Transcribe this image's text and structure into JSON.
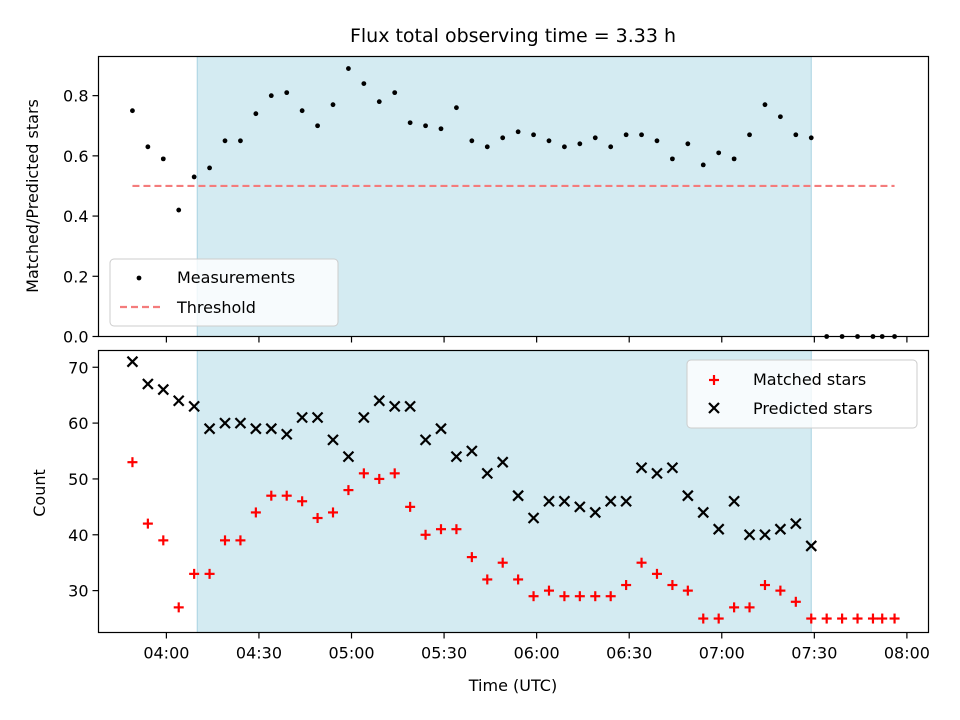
{
  "chart_data": [
    {
      "type": "scatter",
      "title": "Flux total observing time = 3.33 h",
      "xlabel": "",
      "ylabel": "Matched/Predicted stars",
      "xlim": [
        "03:38",
        "08:07"
      ],
      "ylim": [
        0,
        0.93
      ],
      "yticks": [
        0.0,
        0.2,
        0.4,
        0.6,
        0.8
      ],
      "ytick_labels": [
        "0.0",
        "0.2",
        "0.4",
        "0.6",
        "0.8"
      ],
      "grid": false,
      "legend": "lower-left",
      "shaded_region": {
        "x": [
          "04:10",
          "07:29"
        ],
        "color": "#d4ebf2"
      },
      "threshold": {
        "name": "Threshold",
        "y": 0.5,
        "x": [
          "03:49",
          "07:56"
        ],
        "color": "#f47c7c",
        "style": "dashed"
      },
      "series": [
        {
          "name": "Measurements",
          "color": "#000000",
          "marker": "dot",
          "x": [
            "03:49",
            "03:54",
            "03:59",
            "04:04",
            "04:09",
            "04:14",
            "04:19",
            "04:24",
            "04:29",
            "04:34",
            "04:39",
            "04:44",
            "04:49",
            "04:54",
            "04:59",
            "05:04",
            "05:09",
            "05:14",
            "05:19",
            "05:24",
            "05:29",
            "05:34",
            "05:39",
            "05:44",
            "05:49",
            "05:54",
            "05:59",
            "06:04",
            "06:09",
            "06:14",
            "06:19",
            "06:24",
            "06:29",
            "06:34",
            "06:39",
            "06:44",
            "06:49",
            "06:54",
            "06:59",
            "07:04",
            "07:09",
            "07:14",
            "07:19",
            "07:24",
            "07:29",
            "07:34",
            "07:39",
            "07:44",
            "07:49",
            "07:52",
            "07:56"
          ],
          "y": [
            0.75,
            0.63,
            0.59,
            0.42,
            0.53,
            0.56,
            0.65,
            0.65,
            0.74,
            0.8,
            0.81,
            0.75,
            0.7,
            0.77,
            0.89,
            0.84,
            0.78,
            0.81,
            0.71,
            0.7,
            0.69,
            0.76,
            0.65,
            0.63,
            0.66,
            0.68,
            0.67,
            0.65,
            0.63,
            0.64,
            0.66,
            0.63,
            0.67,
            0.67,
            0.65,
            0.59,
            0.64,
            0.57,
            0.61,
            0.59,
            0.67,
            0.77,
            0.73,
            0.67,
            0.66,
            0.0,
            0.0,
            0.0,
            0.0,
            0.0,
            0.0
          ]
        }
      ]
    },
    {
      "type": "scatter",
      "title": "",
      "xlabel": "Time (UTC)",
      "ylabel": "Count",
      "xlim": [
        "03:38",
        "08:07"
      ],
      "xticks": [
        "04:00",
        "04:30",
        "05:00",
        "05:30",
        "06:00",
        "06:30",
        "07:00",
        "07:30",
        "08:00"
      ],
      "ylim": [
        22.5,
        73
      ],
      "yticks": [
        30,
        40,
        50,
        60,
        70
      ],
      "ytick_labels": [
        "30",
        "40",
        "50",
        "60",
        "70"
      ],
      "grid": false,
      "legend": "top-right",
      "shaded_region": {
        "x": [
          "04:10",
          "07:29"
        ],
        "color": "#d4ebf2"
      },
      "series": [
        {
          "name": "Matched stars",
          "color": "#ff0000",
          "marker": "plus",
          "x": [
            "03:49",
            "03:54",
            "03:59",
            "04:04",
            "04:09",
            "04:14",
            "04:19",
            "04:24",
            "04:29",
            "04:34",
            "04:39",
            "04:44",
            "04:49",
            "04:54",
            "04:59",
            "05:04",
            "05:09",
            "05:14",
            "05:19",
            "05:24",
            "05:29",
            "05:34",
            "05:39",
            "05:44",
            "05:49",
            "05:54",
            "05:59",
            "06:04",
            "06:09",
            "06:14",
            "06:19",
            "06:24",
            "06:29",
            "06:34",
            "06:39",
            "06:44",
            "06:49",
            "06:54",
            "06:59",
            "07:04",
            "07:09",
            "07:14",
            "07:19",
            "07:24",
            "07:29",
            "07:34",
            "07:39",
            "07:44",
            "07:49",
            "07:52",
            "07:56"
          ],
          "y": [
            53,
            42,
            39,
            27,
            33,
            33,
            39,
            39,
            44,
            47,
            47,
            46,
            43,
            44,
            48,
            51,
            50,
            51,
            45,
            40,
            41,
            41,
            36,
            32,
            35,
            32,
            29,
            30,
            29,
            29,
            29,
            29,
            31,
            35,
            33,
            31,
            30,
            25,
            25,
            27,
            27,
            31,
            30,
            28,
            25,
            25,
            25,
            25,
            25,
            25,
            25
          ]
        },
        {
          "name": "Predicted stars",
          "color": "#000000",
          "marker": "x",
          "x": [
            "03:49",
            "03:54",
            "03:59",
            "04:04",
            "04:09",
            "04:14",
            "04:19",
            "04:24",
            "04:29",
            "04:34",
            "04:39",
            "04:44",
            "04:49",
            "04:54",
            "04:59",
            "05:04",
            "05:09",
            "05:14",
            "05:19",
            "05:24",
            "05:29",
            "05:34",
            "05:39",
            "05:44",
            "05:49",
            "05:54",
            "05:59",
            "06:04",
            "06:09",
            "06:14",
            "06:19",
            "06:24",
            "06:29",
            "06:34",
            "06:39",
            "06:44",
            "06:49",
            "06:54",
            "06:59",
            "07:04",
            "07:09",
            "07:14",
            "07:19",
            "07:24",
            "07:29"
          ],
          "y": [
            71,
            67,
            66,
            64,
            63,
            59,
            60,
            60,
            59,
            59,
            58,
            61,
            61,
            57,
            54,
            61,
            64,
            63,
            63,
            57,
            59,
            54,
            55,
            51,
            53,
            47,
            43,
            46,
            46,
            45,
            44,
            46,
            46,
            52,
            51,
            52,
            47,
            44,
            41,
            46,
            40,
            40,
            41,
            42,
            38
          ]
        }
      ]
    }
  ]
}
